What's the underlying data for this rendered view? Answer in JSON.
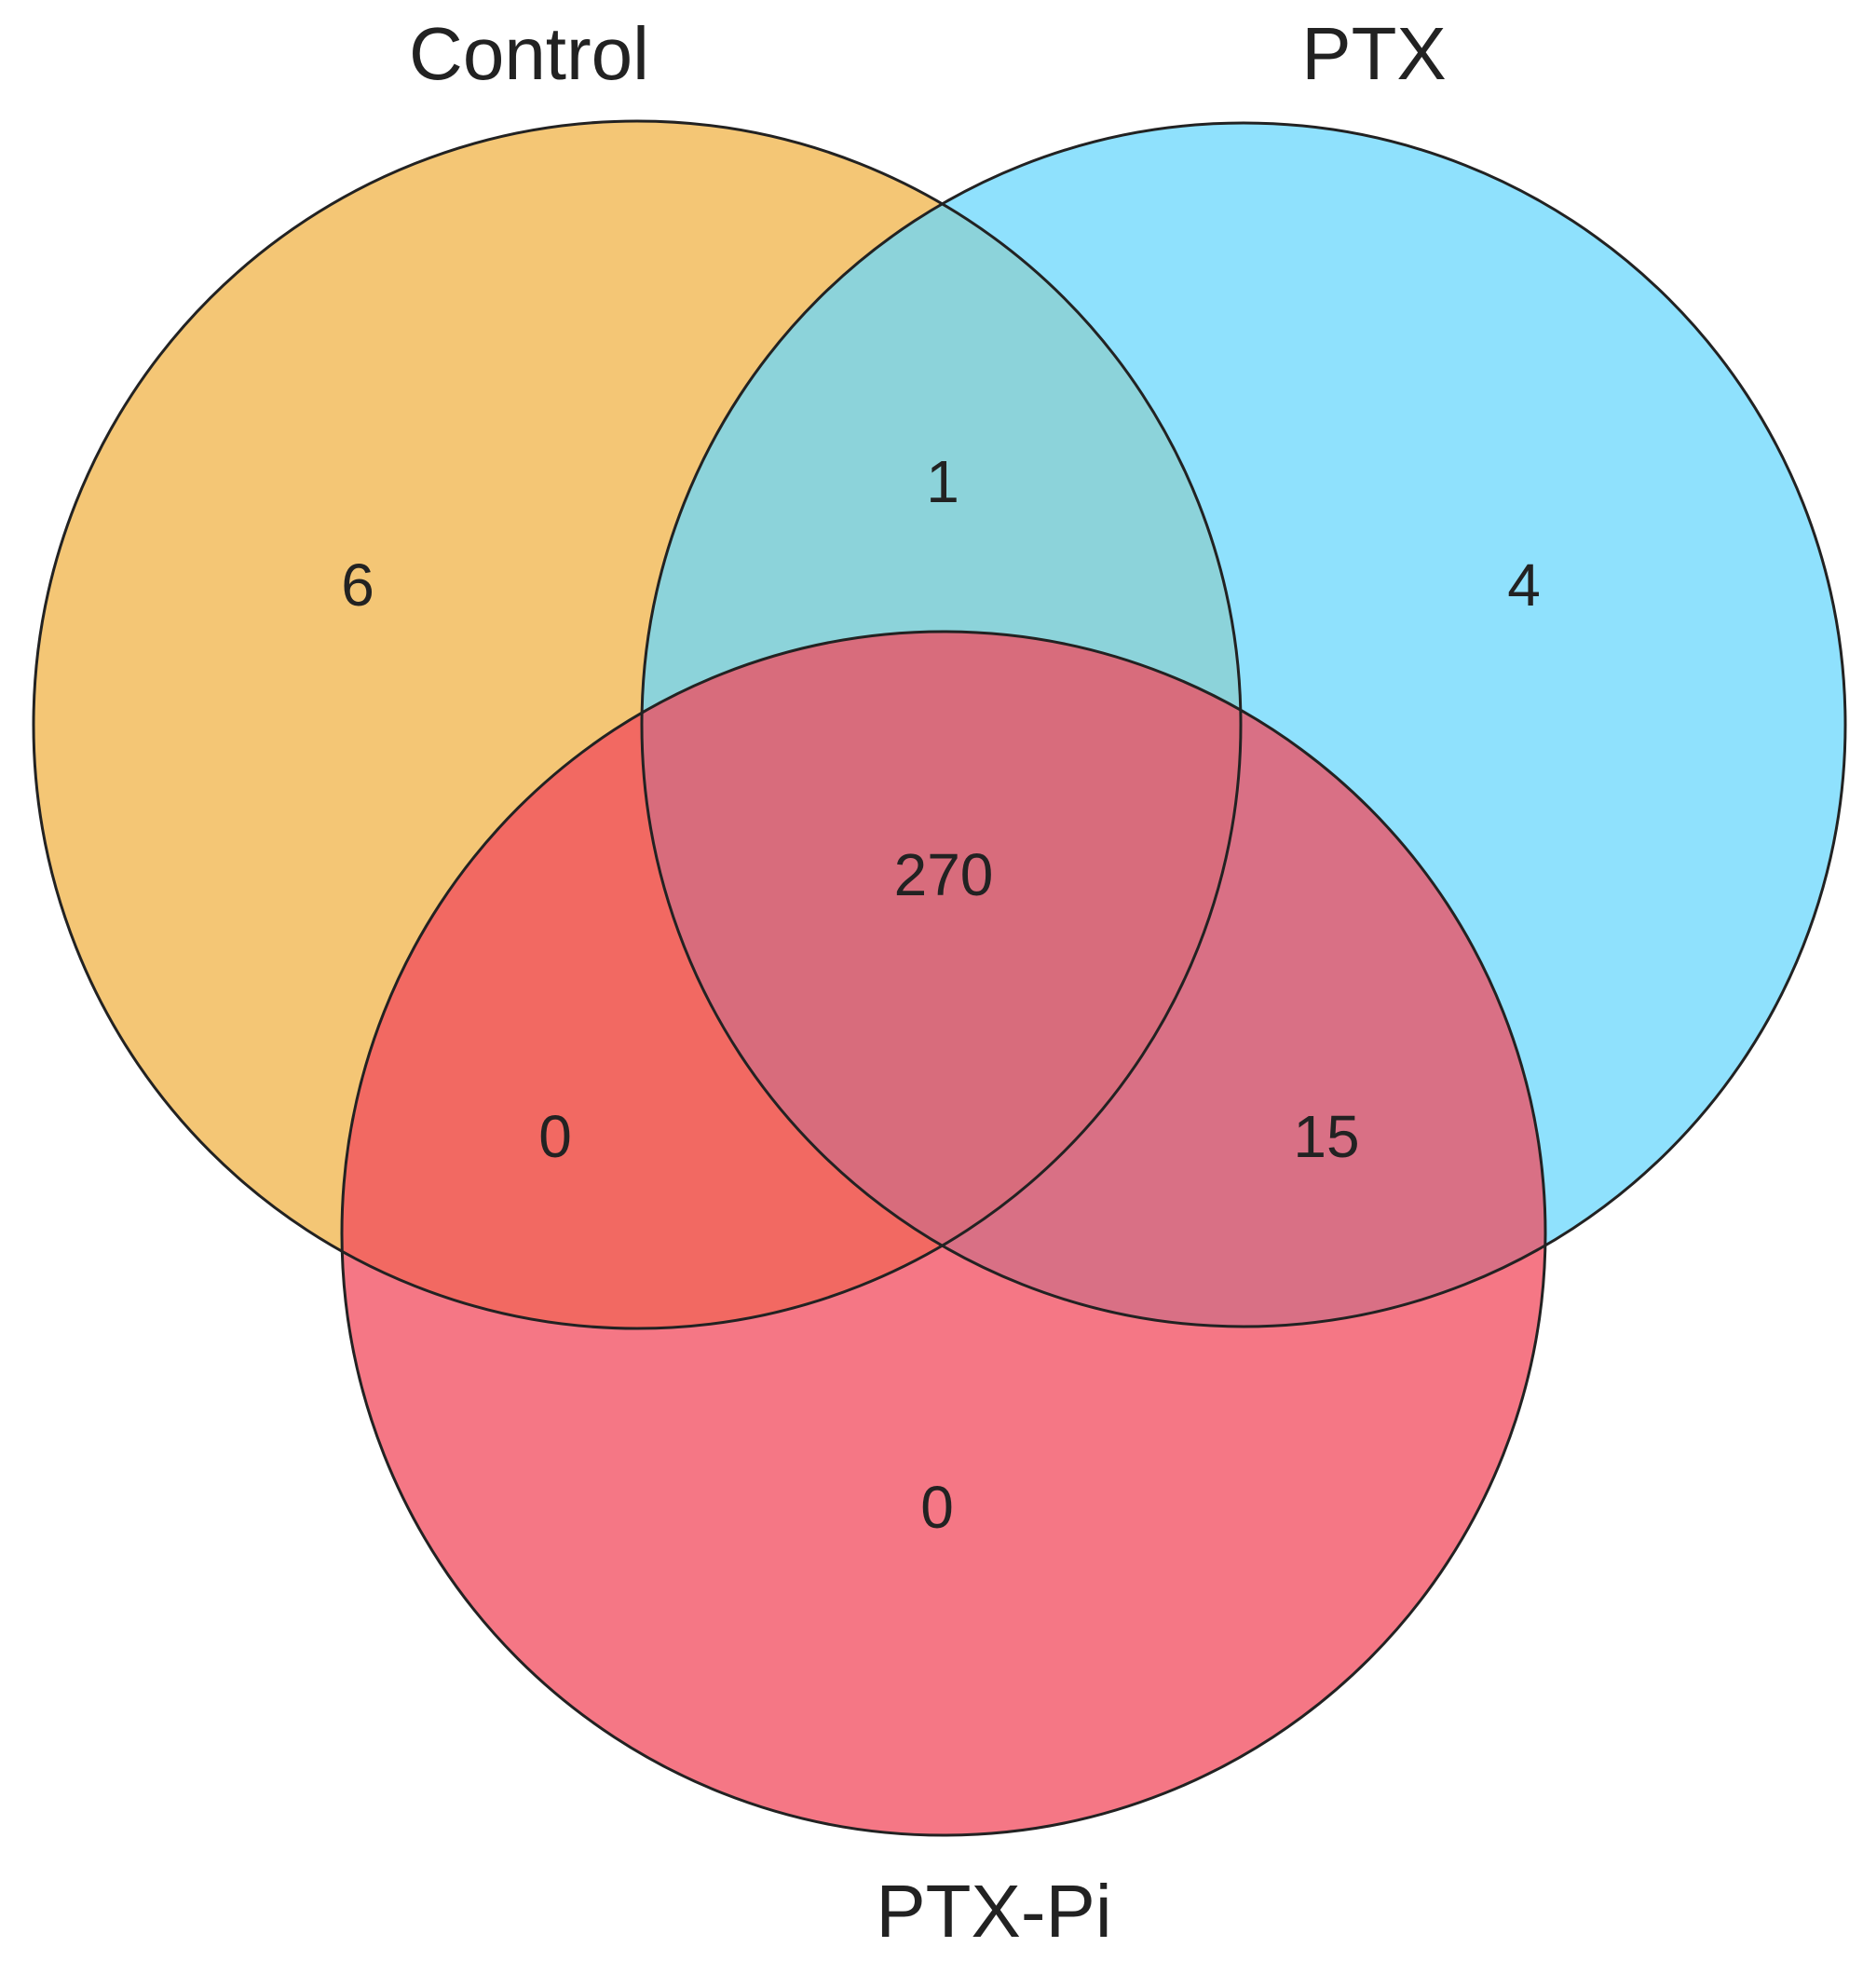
{
  "chart_data": {
    "type": "venn",
    "sets": [
      {
        "name": "Control",
        "color": "#f0b347"
      },
      {
        "name": "PTX",
        "color": "#6ad7fc"
      },
      {
        "name": "PTX-Pi",
        "color": "#f24a5c"
      }
    ],
    "values": [
      6,
      4,
      0,
      1,
      0,
      15,
      270
    ]
  }
}
